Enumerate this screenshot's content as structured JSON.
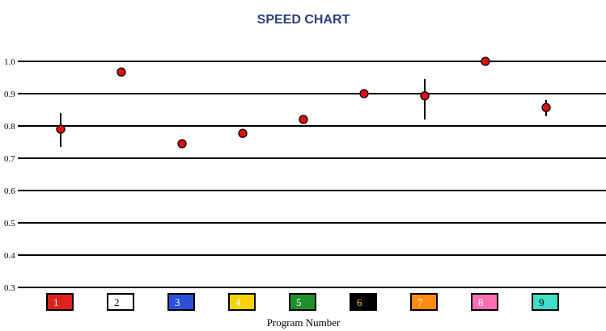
{
  "chart_data": {
    "type": "scatter",
    "title": "SPEED CHART",
    "xlabel": "Program Number",
    "ylabel": "",
    "ylim": [
      0.3,
      1.0
    ],
    "yticks": [
      "1.0",
      "0.9",
      "0.8",
      "0.7",
      "0.6",
      "0.5",
      "0.4",
      "0.3"
    ],
    "grid": true,
    "points": [
      {
        "x": 1,
        "y": 0.79,
        "err_low": 0.735,
        "err_high": 0.84
      },
      {
        "x": 2,
        "y": 0.967
      },
      {
        "x": 3,
        "y": 0.745
      },
      {
        "x": 4,
        "y": 0.777
      },
      {
        "x": 5,
        "y": 0.82
      },
      {
        "x": 6,
        "y": 0.9
      },
      {
        "x": 7,
        "y": 0.893,
        "err_low": 0.82,
        "err_high": 0.945
      },
      {
        "x": 8,
        "y": 1.0
      },
      {
        "x": 9,
        "y": 0.857,
        "err_low": 0.83,
        "err_high": 0.88
      }
    ],
    "programs": [
      {
        "label": "1",
        "color": "#dd2020",
        "text_color": "#ffffff"
      },
      {
        "label": "2",
        "color": "#ffffff",
        "text_color": "#000000"
      },
      {
        "label": "3",
        "color": "#2a4fd8",
        "text_color": "#ffffff"
      },
      {
        "label": "4",
        "color": "#f5d200",
        "text_color": "#ffffff"
      },
      {
        "label": "5",
        "color": "#1e8f2a",
        "text_color": "#ffffff"
      },
      {
        "label": "6",
        "color": "#000000",
        "text_color": "#f5c94a"
      },
      {
        "label": "7",
        "color": "#ff8c10",
        "text_color": "#ffffff"
      },
      {
        "label": "8",
        "color": "#ff6fb4",
        "text_color": "#ffffff"
      },
      {
        "label": "9",
        "color": "#40ddc8",
        "text_color": "#000000"
      }
    ],
    "marker_color": "#e01010",
    "title_color": "#2b3f7a"
  }
}
